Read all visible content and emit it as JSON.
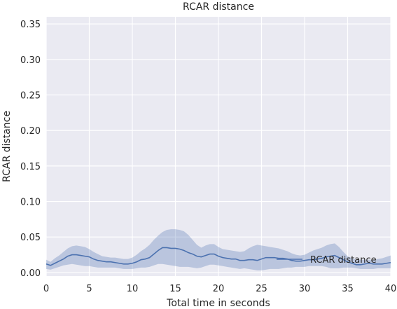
{
  "chart_data": {
    "type": "line",
    "title": "RCAR distance",
    "xlabel": "Total time in seconds",
    "ylabel": "RCAR distance",
    "xlim": [
      0,
      40
    ],
    "ylim": [
      -0.005,
      0.36
    ],
    "xticks": [
      0,
      5,
      10,
      15,
      20,
      25,
      30,
      35,
      40
    ],
    "yticks": [
      0.0,
      0.05,
      0.1,
      0.15,
      0.2,
      0.25,
      0.3,
      0.35
    ],
    "ytick_labels": [
      "0.00",
      "0.05",
      "0.10",
      "0.15",
      "0.20",
      "0.25",
      "0.30",
      "0.35"
    ],
    "grid": true,
    "legend_position": "lower-right",
    "colors": {
      "line": "#4c72b0",
      "band": "#4c72b0",
      "background": "#eaeaf2",
      "grid": "#ffffff"
    },
    "series": [
      {
        "name": "RCAR distance",
        "x": [
          0,
          0.5,
          1,
          1.5,
          2,
          2.5,
          3,
          3.5,
          4,
          4.5,
          5,
          5.5,
          6,
          6.5,
          7,
          7.5,
          8,
          8.5,
          9,
          9.5,
          10,
          10.5,
          11,
          11.5,
          12,
          12.5,
          13,
          13.5,
          14,
          14.5,
          15,
          15.5,
          16,
          16.5,
          17,
          17.5,
          18,
          18.5,
          19,
          19.5,
          20,
          20.5,
          21,
          21.5,
          22,
          22.5,
          23,
          23.5,
          24,
          24.5,
          25,
          25.5,
          26,
          26.5,
          27,
          27.5,
          28,
          28.5,
          29,
          29.5,
          30,
          30.5,
          31,
          31.5,
          32,
          32.5,
          33,
          33.5,
          34,
          34.5,
          35,
          35.5,
          36,
          36.5,
          37,
          37.5,
          38,
          38.5,
          39,
          39.5,
          40
        ],
        "y": [
          0.012,
          0.01,
          0.013,
          0.016,
          0.019,
          0.023,
          0.025,
          0.025,
          0.024,
          0.023,
          0.022,
          0.019,
          0.017,
          0.016,
          0.015,
          0.015,
          0.014,
          0.013,
          0.012,
          0.012,
          0.013,
          0.015,
          0.018,
          0.019,
          0.021,
          0.026,
          0.031,
          0.035,
          0.035,
          0.034,
          0.034,
          0.033,
          0.031,
          0.028,
          0.026,
          0.023,
          0.022,
          0.024,
          0.026,
          0.026,
          0.023,
          0.021,
          0.02,
          0.019,
          0.019,
          0.017,
          0.017,
          0.018,
          0.018,
          0.017,
          0.019,
          0.021,
          0.021,
          0.021,
          0.02,
          0.02,
          0.019,
          0.017,
          0.016,
          0.016,
          0.017,
          0.018,
          0.018,
          0.019,
          0.02,
          0.022,
          0.023,
          0.024,
          0.021,
          0.018,
          0.015,
          0.013,
          0.011,
          0.011,
          0.012,
          0.013,
          0.012,
          0.012,
          0.012,
          0.013,
          0.014
        ],
        "ci_lower": [
          0.005,
          0.004,
          0.006,
          0.008,
          0.01,
          0.011,
          0.012,
          0.011,
          0.01,
          0.009,
          0.009,
          0.008,
          0.007,
          0.007,
          0.007,
          0.007,
          0.007,
          0.006,
          0.005,
          0.005,
          0.005,
          0.006,
          0.007,
          0.007,
          0.008,
          0.01,
          0.012,
          0.012,
          0.011,
          0.01,
          0.009,
          0.008,
          0.008,
          0.008,
          0.007,
          0.006,
          0.007,
          0.009,
          0.011,
          0.011,
          0.01,
          0.009,
          0.008,
          0.007,
          0.006,
          0.005,
          0.006,
          0.005,
          0.004,
          0.003,
          0.003,
          0.004,
          0.005,
          0.005,
          0.005,
          0.006,
          0.007,
          0.007,
          0.008,
          0.008,
          0.008,
          0.009,
          0.009,
          0.009,
          0.009,
          0.008,
          0.006,
          0.006,
          0.006,
          0.007,
          0.007,
          0.007,
          0.006,
          0.005,
          0.005,
          0.005,
          0.005,
          0.006,
          0.006,
          0.006,
          0.006
        ],
        "ci_upper": [
          0.018,
          0.015,
          0.02,
          0.024,
          0.029,
          0.034,
          0.037,
          0.038,
          0.037,
          0.036,
          0.033,
          0.029,
          0.026,
          0.023,
          0.022,
          0.021,
          0.021,
          0.02,
          0.019,
          0.019,
          0.021,
          0.025,
          0.03,
          0.034,
          0.039,
          0.046,
          0.052,
          0.057,
          0.06,
          0.061,
          0.061,
          0.06,
          0.058,
          0.053,
          0.046,
          0.039,
          0.035,
          0.038,
          0.04,
          0.04,
          0.036,
          0.033,
          0.032,
          0.031,
          0.03,
          0.029,
          0.03,
          0.034,
          0.037,
          0.039,
          0.038,
          0.037,
          0.036,
          0.035,
          0.034,
          0.032,
          0.03,
          0.027,
          0.025,
          0.024,
          0.025,
          0.028,
          0.031,
          0.033,
          0.035,
          0.038,
          0.04,
          0.041,
          0.036,
          0.029,
          0.023,
          0.02,
          0.018,
          0.018,
          0.018,
          0.018,
          0.018,
          0.019,
          0.02,
          0.022,
          0.024
        ]
      }
    ]
  }
}
